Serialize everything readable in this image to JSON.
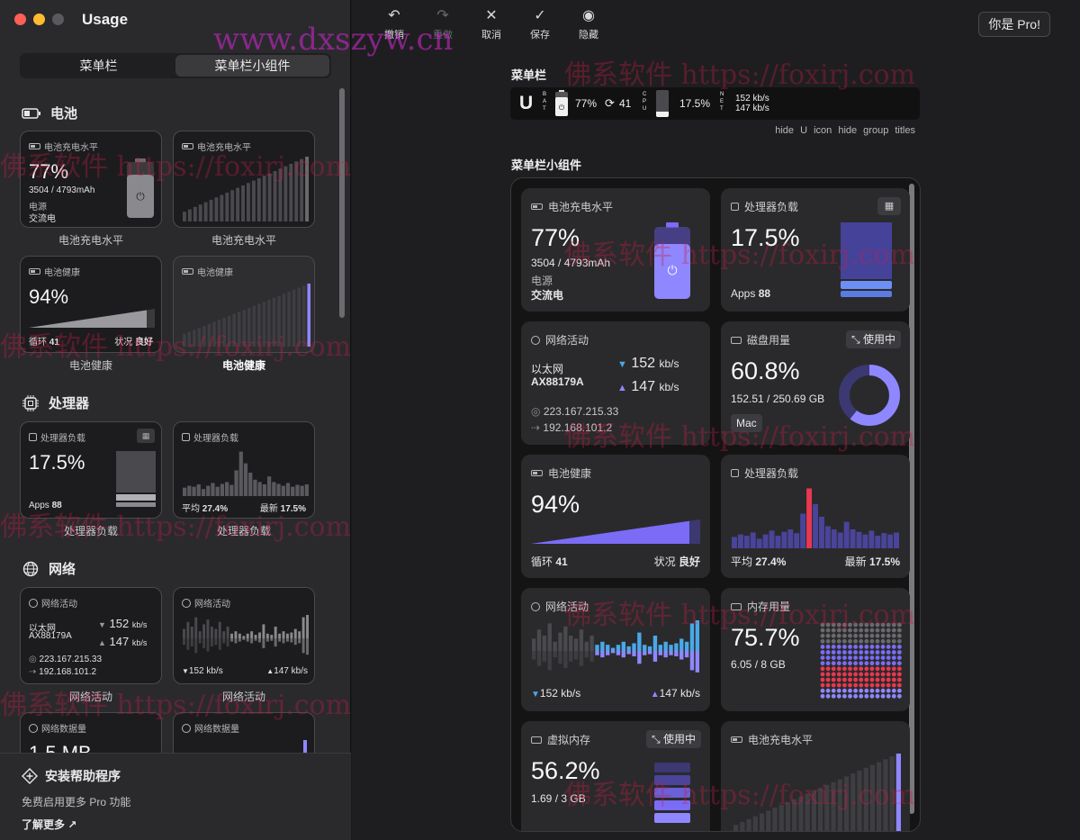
{
  "app": {
    "title": "Usage",
    "pro_label": "你是 Pro!"
  },
  "tabs": [
    {
      "label": "菜单栏"
    },
    {
      "label": "菜单栏小组件"
    }
  ],
  "toolbar": {
    "undo": "撤销",
    "redo": "重做",
    "cancel": "取消",
    "save": "保存",
    "hide": "隐藏"
  },
  "sidebar": {
    "battery": {
      "title": "电池",
      "charge_widget": {
        "header": "电池充电水平",
        "percent": "77%",
        "capacity": "3504 / 4793mAh",
        "source_label": "电源",
        "source_value": "交流电",
        "caption": "电池充电水平"
      },
      "charge_history": {
        "header": "电池充电水平",
        "caption": "电池充电水平"
      },
      "health_widget": {
        "header": "电池健康",
        "percent": "94%",
        "cycles_label": "循环",
        "cycles_value": "41",
        "status_label": "状况",
        "status_value": "良好",
        "caption": "电池健康"
      },
      "health_history": {
        "header": "电池健康",
        "caption": "电池健康"
      }
    },
    "cpu": {
      "title": "处理器",
      "load_widget": {
        "header": "处理器负载",
        "percent": "17.5%",
        "apps_label": "Apps",
        "apps_value": "88",
        "caption": "处理器负载"
      },
      "load_history": {
        "header": "处理器负载",
        "avg_label": "平均",
        "avg_value": "27.4%",
        "latest_label": "最新",
        "latest_value": "17.5%",
        "caption": "处理器负载"
      }
    },
    "network": {
      "title": "网络",
      "activity_widget": {
        "header": "网络活动",
        "iface_label": "以太网",
        "iface_name": "AX88179A",
        "down": "152",
        "up": "147",
        "unit": "kb/s",
        "public_ip": "223.167.215.33",
        "local_ip": "192.168.101.2",
        "caption": "网络活动"
      },
      "activity_history": {
        "header": "网络活动",
        "down": "152 kb/s",
        "up": "147 kb/s",
        "caption": "网络活动"
      },
      "data_widget": {
        "header": "网络数据量",
        "value": "1.5 MB"
      },
      "data_history": {
        "header": "网络数据量"
      }
    },
    "helper": {
      "title": "安装帮助程序",
      "subtitle": "免费启用更多 Pro 功能",
      "link": "了解更多 ↗"
    }
  },
  "main": {
    "menubar_title": "菜单栏",
    "menubar": {
      "bat_label": "BAT",
      "bat_percent": "77%",
      "cycles": "41",
      "cpu_label": "CPU",
      "cpu_percent": "17.5%",
      "net_label": "NET",
      "net_down": "152 kb/s",
      "net_up": "147 kb/s"
    },
    "hint_hide_icon": "hide U icon",
    "hint_hide_titles": "hide group titles",
    "widgets_title": "菜单栏小组件",
    "widgets": {
      "charge": {
        "header": "电池充电水平",
        "percent": "77%",
        "capacity": "3504 / 4793mAh",
        "source_label": "电源",
        "source_value": "交流电"
      },
      "cpu_load": {
        "header": "处理器负载",
        "percent": "17.5%",
        "apps_label": "Apps",
        "apps_value": "88"
      },
      "net_activity": {
        "header": "网络活动",
        "iface_label": "以太网",
        "iface_name": "AX88179A",
        "down": "152",
        "up": "147",
        "unit": "kb/s",
        "public_ip": "223.167.215.33",
        "local_ip": "192.168.101.2"
      },
      "disk": {
        "header": "磁盘用量",
        "mode": "使用中",
        "percent": "60.8%",
        "detail": "152.51 / 250.69 GB",
        "volume": "Mac",
        "used_fraction": 0.608
      },
      "health": {
        "header": "电池健康",
        "percent": "94%",
        "cycles_label": "循环",
        "cycles_value": "41",
        "status_label": "状况",
        "status_value": "良好"
      },
      "cpu_history": {
        "header": "处理器负载",
        "avg_label": "平均",
        "avg_value": "27.4%",
        "latest_label": "最新",
        "latest_value": "17.5%"
      },
      "net_history": {
        "header": "网络活动",
        "down": "152 kb/s",
        "up": "147 kb/s"
      },
      "memory": {
        "header": "内存用量",
        "percent": "75.7%",
        "detail": "6.05 / 8 GB"
      },
      "vmem": {
        "header": "虚拟内存",
        "mode": "使用中",
        "percent": "56.2%",
        "detail": "1.69 / 3 GB"
      },
      "charge_history": {
        "header": "电池充电水平"
      }
    }
  },
  "watermarks": {
    "site_cn": "佛系软件 https://foxirj.com",
    "site_top": "www.dxszyw.cn"
  },
  "colors": {
    "accent": "#7b6cf6",
    "accent_light": "#8f87ff",
    "red": "#e8384f",
    "cyan": "#4aa8e8",
    "gray": "#8a8a8e"
  }
}
